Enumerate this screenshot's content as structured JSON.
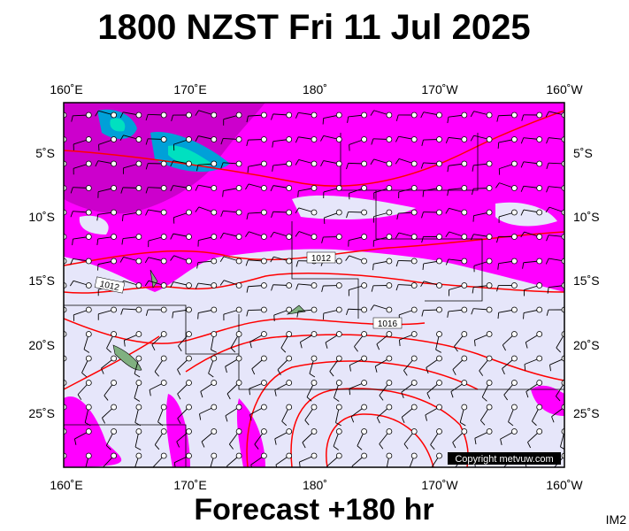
{
  "header": {
    "title": "1800 NZST Fri 11 Jul 2025"
  },
  "map": {
    "lon_labels": [
      "160˚E",
      "170˚E",
      "180˚",
      "170˚W",
      "160˚W"
    ],
    "lat_labels": [
      "5˚S",
      "10˚S",
      "15˚S",
      "20˚S",
      "25˚S"
    ],
    "isobar_labels": [
      "1012",
      "1012",
      "1016"
    ],
    "copyright": "Copyright metvuw.com"
  },
  "footer": {
    "forecast": "Forecast +180 hr",
    "code": "IM2"
  }
}
